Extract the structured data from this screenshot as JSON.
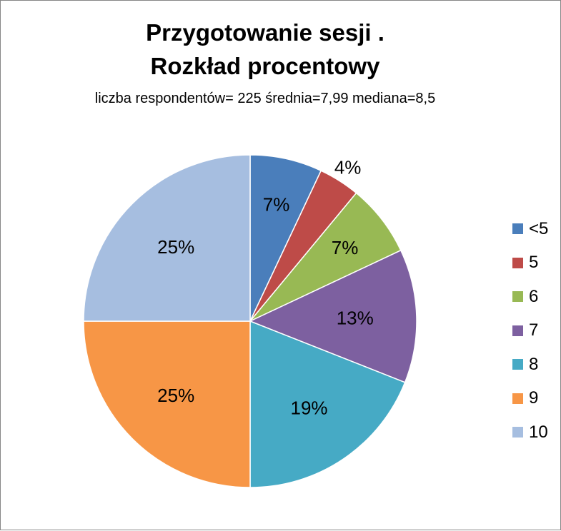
{
  "chart_data": {
    "type": "pie",
    "title_line1": "Przygotowanie sesji .",
    "title_line2": "Rozkład procentowy",
    "subtitle": "liczba respondentów= 225 średnia=7,99 mediana=8,5",
    "categories": [
      "<5",
      "5",
      "6",
      "7",
      "8",
      "9",
      "10"
    ],
    "values": [
      7,
      4,
      7,
      13,
      19,
      25,
      25
    ],
    "labels": [
      "7%",
      "4%",
      "7%",
      "13%",
      "19%",
      "25%",
      "25%"
    ],
    "colors": [
      "#4A7EBB",
      "#BE4B48",
      "#98B954",
      "#7D60A0",
      "#46AAC5",
      "#F79646",
      "#A6BEE0"
    ],
    "legend_position": "right"
  }
}
